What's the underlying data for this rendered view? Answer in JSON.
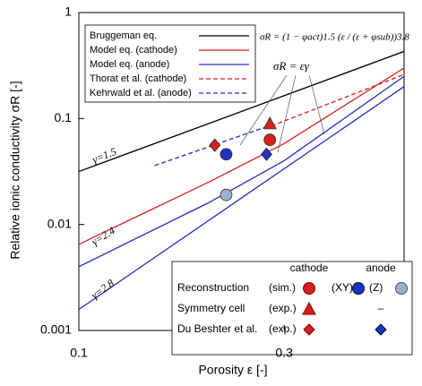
{
  "chart_data": {
    "type": "line",
    "xlabel": "Porosity ε [-]",
    "ylabel": "Relative ionic conductivity σR [-]",
    "xscale": "log",
    "yscale": "log",
    "xlim": [
      0.1,
      0.57
    ],
    "ylim": [
      0.001,
      1
    ],
    "xticks": [
      0.1,
      0.3
    ],
    "yticks": [
      0.001,
      0.01,
      0.1,
      1
    ],
    "series": [
      {
        "name": "Bruggeman eq.",
        "color": "#000000",
        "dash": false,
        "x": [
          0.1,
          0.57
        ],
        "values": [
          0.0316,
          0.43
        ]
      },
      {
        "name": "Model eq. (cathode)",
        "color": "#d42020",
        "dash": false,
        "x": [
          0.1,
          0.2,
          0.3,
          0.57
        ],
        "values": [
          0.0065,
          0.025,
          0.058,
          0.3
        ]
      },
      {
        "name": "Model eq. (anode)",
        "color": "#2030c0",
        "dash": false,
        "x": [
          0.1,
          0.2,
          0.3,
          0.57
        ],
        "values": [
          0.004,
          0.016,
          0.04,
          0.25
        ]
      },
      {
        "name": "Thorat et al. (cathode)",
        "color": "#d42020",
        "dash": true,
        "x": [
          0.28,
          0.57
        ],
        "values": [
          0.085,
          0.26
        ]
      },
      {
        "name": "Kehrwald et al. (anode)",
        "color": "#2030c0",
        "dash": true,
        "x": [
          0.15,
          0.276
        ],
        "values": [
          0.036,
          0.085
        ]
      }
    ],
    "extra_lines": [
      {
        "color": "#2030c0",
        "x": [
          0.1,
          0.57
        ],
        "values": [
          0.00158,
          0.2
        ]
      }
    ],
    "markers": [
      {
        "shape": "circle",
        "color": "#d42020",
        "x": 0.278,
        "value": 0.063
      },
      {
        "shape": "triangle",
        "color": "#d42020",
        "x": 0.278,
        "value": 0.088
      },
      {
        "shape": "diamond",
        "color": "#d42020",
        "x": 0.207,
        "value": 0.056
      },
      {
        "shape": "circle",
        "color": "#2030c0",
        "x": 0.22,
        "value": 0.046
      },
      {
        "shape": "diamond",
        "color": "#2030c0",
        "x": 0.273,
        "value": 0.046
      },
      {
        "shape": "circle",
        "color": "#9ab0d0",
        "x": 0.22,
        "value": 0.019
      }
    ],
    "annotations": {
      "g15": "γ=1.5",
      "g24": "γ=2.4",
      "g28": "γ=2.8",
      "formula": "σR = (1 − φact)1.5 (ε / (ε + φsub))3.8",
      "power": "σR = εγ"
    },
    "legend2": {
      "cathode": "cathode",
      "anode": "anode",
      "rows": [
        [
          "Reconstruction",
          "(sim.)",
          "(XY)",
          "(Z)"
        ],
        [
          "Symmetry cell",
          "(exp.)",
          "–"
        ],
        [
          "Du Beshter et al.",
          "(exp.)"
        ]
      ]
    }
  }
}
